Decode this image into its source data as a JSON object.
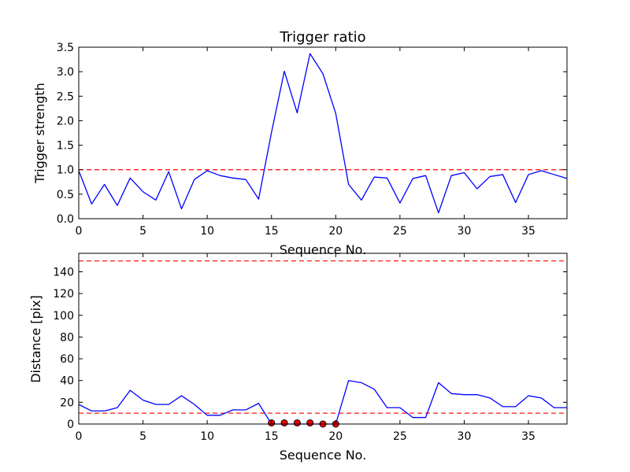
{
  "chart_data": [
    {
      "type": "line",
      "title": "Trigger ratio",
      "xlabel": "Sequence No.",
      "ylabel": "Trigger strength",
      "xlim": [
        0,
        38
      ],
      "ylim": [
        0,
        3.5
      ],
      "xticks": [
        0,
        5,
        10,
        15,
        20,
        25,
        30,
        35
      ],
      "yticks": [
        "0.0",
        "0.5",
        "1.0",
        "1.5",
        "2.0",
        "2.5",
        "3.0",
        "3.5"
      ],
      "grid": false,
      "series": [
        {
          "color": "#0000ff",
          "x": [
            0,
            1,
            2,
            3,
            4,
            5,
            6,
            7,
            8,
            9,
            10,
            11,
            12,
            13,
            14,
            15,
            16,
            17,
            18,
            19,
            20,
            21,
            22,
            23,
            24,
            25,
            26,
            27,
            28,
            29,
            30,
            31,
            32,
            33,
            34,
            35,
            36,
            37,
            38
          ],
          "values": [
            0.98,
            0.3,
            0.7,
            0.27,
            0.83,
            0.55,
            0.38,
            0.96,
            0.2,
            0.8,
            0.98,
            0.88,
            0.83,
            0.8,
            0.4,
            1.76,
            3.01,
            2.16,
            3.37,
            2.96,
            2.15,
            0.7,
            0.38,
            0.85,
            0.83,
            0.32,
            0.82,
            0.88,
            0.12,
            0.88,
            0.94,
            0.61,
            0.86,
            0.9,
            0.33,
            0.9,
            0.98,
            0.9,
            0.82
          ]
        }
      ],
      "reference_lines": [
        {
          "y": 1.0,
          "color": "#ff0000",
          "style": "dashed"
        }
      ]
    },
    {
      "type": "line",
      "title": "",
      "xlabel": "Sequence No.",
      "ylabel": "Distance [pix]",
      "xlim": [
        0,
        38
      ],
      "ylim": [
        0,
        157
      ],
      "xticks": [
        0,
        5,
        10,
        15,
        20,
        25,
        30,
        35
      ],
      "yticks": [
        0,
        20,
        40,
        60,
        80,
        100,
        120,
        140
      ],
      "grid": false,
      "series": [
        {
          "color": "#0000ff",
          "x": [
            0,
            1,
            2,
            3,
            4,
            5,
            6,
            7,
            8,
            9,
            10,
            11,
            12,
            13,
            14,
            15,
            16,
            17,
            18,
            19,
            20,
            21,
            22,
            23,
            24,
            25,
            26,
            27,
            28,
            29,
            30,
            31,
            32,
            33,
            34,
            35,
            36,
            37,
            38
          ],
          "values": [
            18,
            12,
            12,
            15,
            31,
            22,
            18,
            18,
            26,
            18,
            8,
            8,
            13,
            13,
            19,
            0,
            0,
            0,
            0,
            0,
            0,
            40,
            38,
            32,
            15,
            15,
            6,
            6,
            38,
            28,
            27,
            27,
            24,
            16,
            16,
            26,
            24,
            15,
            15
          ]
        }
      ],
      "markers": {
        "color": "#ff0000",
        "x": [
          15,
          16,
          17,
          18,
          19,
          20
        ],
        "values": [
          1,
          1,
          1,
          1,
          0,
          0
        ]
      },
      "reference_lines": [
        {
          "y": 10,
          "color": "#ff0000",
          "style": "dashed"
        },
        {
          "y": 150,
          "color": "#ff0000",
          "style": "dashed"
        }
      ]
    }
  ]
}
